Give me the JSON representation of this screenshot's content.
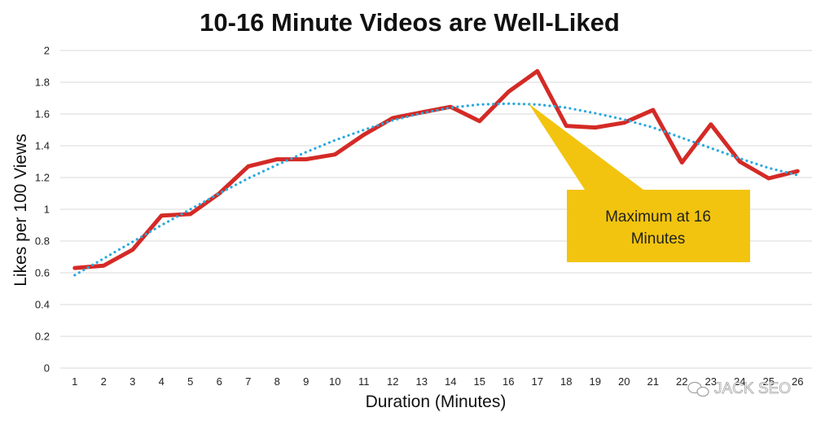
{
  "chart_data": {
    "type": "line",
    "title": "10-16 Minute Videos are Well-Liked",
    "xlabel": "Duration (Minutes)",
    "ylabel": "Likes per 100 Views",
    "x": [
      1,
      2,
      3,
      4,
      5,
      6,
      7,
      8,
      9,
      10,
      11,
      12,
      13,
      14,
      15,
      16,
      17,
      18,
      19,
      20,
      21,
      22,
      23,
      24,
      25,
      26
    ],
    "xtick_labels": [
      "1",
      "2",
      "3",
      "4",
      "5",
      "6",
      "7",
      "8",
      "9",
      "10",
      "11",
      "12",
      "13",
      "14",
      "15",
      "16",
      "17",
      "18",
      "19",
      "20",
      "21",
      "22",
      "23",
      "24",
      "25",
      "26"
    ],
    "yticks": [
      0,
      0.2,
      0.4,
      0.6,
      0.8,
      1,
      1.2,
      1.4,
      1.6,
      1.8,
      2
    ],
    "ytick_labels": [
      "0",
      "0.2",
      "0.4",
      "0.6",
      "0.8",
      "1",
      "1.2",
      "1.4",
      "1.6",
      "1.8",
      "2"
    ],
    "ylim": [
      0,
      2
    ],
    "xlim": [
      0.5,
      26.5
    ],
    "grid": "horizontal",
    "series": [
      {
        "style": "solid",
        "color": "#d42a26",
        "values": [
          0.63,
          0.645,
          0.745,
          0.96,
          0.97,
          1.1,
          1.27,
          1.315,
          1.315,
          1.345,
          1.47,
          1.575,
          1.61,
          1.645,
          1.555,
          1.74,
          1.87,
          1.525,
          1.515,
          1.545,
          1.625,
          1.295,
          1.535,
          1.3,
          1.195,
          1.24
        ]
      },
      {
        "style": "dotted-trendline",
        "color": "#2aa9de",
        "values": [
          0.585,
          0.69,
          0.795,
          0.9,
          1.0,
          1.1,
          1.195,
          1.28,
          1.36,
          1.435,
          1.5,
          1.56,
          1.605,
          1.64,
          1.66,
          1.665,
          1.66,
          1.64,
          1.605,
          1.565,
          1.515,
          1.45,
          1.385,
          1.32,
          1.26,
          1.215
        ]
      }
    ],
    "annotation": {
      "text_lines": [
        "Maximum at 16",
        "Minutes"
      ],
      "points_to_x": 16.7,
      "points_to_y": 1.665,
      "box_color": "#f2c40f"
    }
  },
  "watermark": {
    "text": "JACK SEO",
    "icon": "wechat-icon"
  }
}
